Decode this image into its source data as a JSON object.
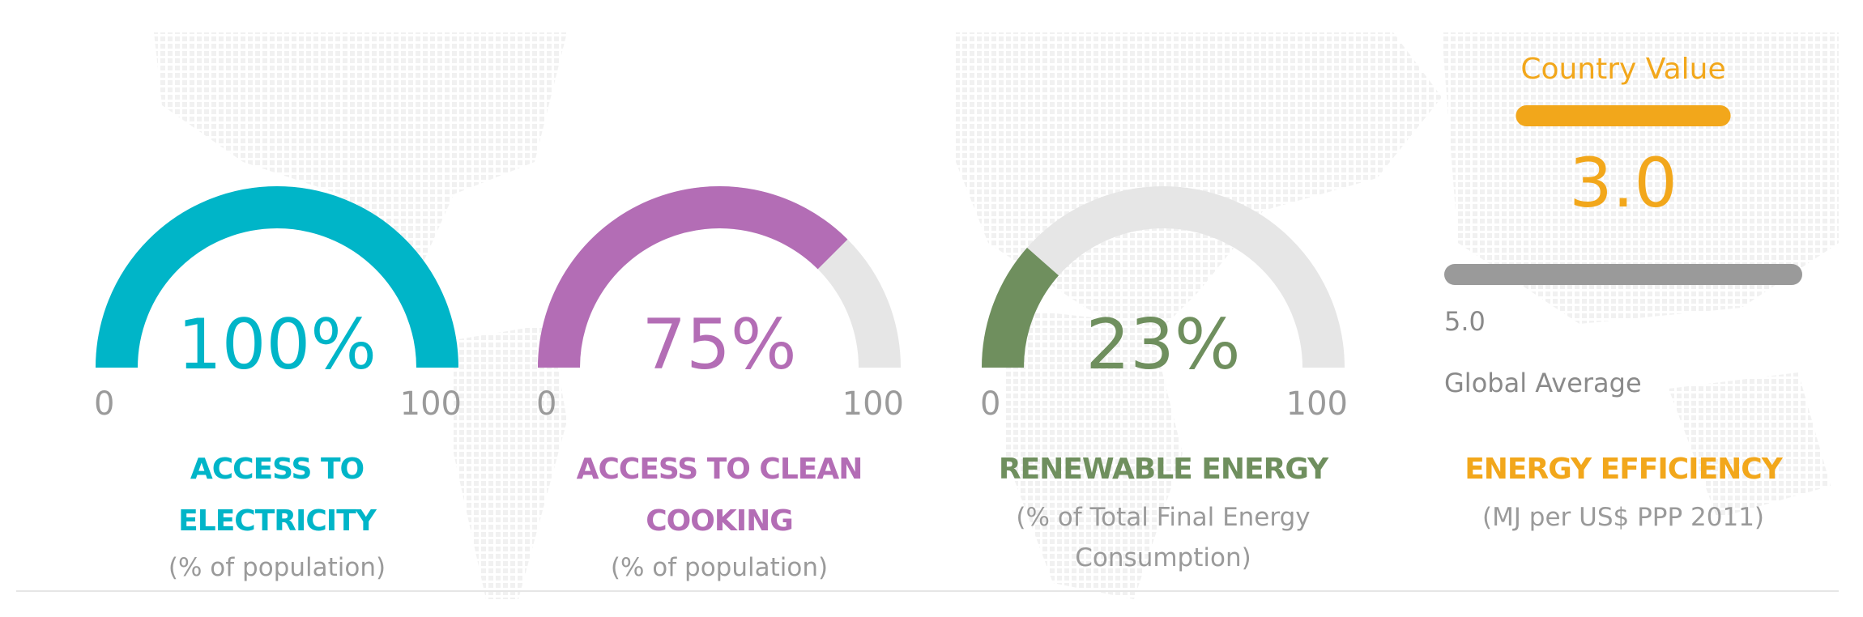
{
  "chart_data": [
    {
      "type": "gauge",
      "title": "ACCESS TO ELECTRICITY",
      "subtitle": "(% of population)",
      "color": "#00b5c8",
      "values": [
        100
      ],
      "value_labels": [
        "100%"
      ],
      "ylim": [
        0,
        100
      ],
      "yticks": [
        0,
        100
      ]
    },
    {
      "type": "gauge",
      "title": "ACCESS TO CLEAN COOKING",
      "subtitle": "(% of population)",
      "color": "#b36db5",
      "values": [
        75
      ],
      "value_labels": [
        "75%"
      ],
      "ylim": [
        0,
        100
      ],
      "yticks": [
        0,
        100
      ]
    },
    {
      "type": "gauge",
      "title": "RENEWABLE ENERGY",
      "subtitle": "(% of Total Final Energy Consumption)",
      "color": "#6f8f5e",
      "values": [
        23
      ],
      "value_labels": [
        "23%"
      ],
      "ylim": [
        0,
        100
      ],
      "yticks": [
        0,
        100
      ]
    },
    {
      "type": "comparison",
      "title": "ENERGY EFFICIENCY",
      "subtitle": "(MJ per US$ PPP 2011)",
      "color": "#f2a71b",
      "series": [
        {
          "name": "Country Value",
          "color": "#f2a71b",
          "values": [
            3.0
          ],
          "value_labels": [
            "3.0"
          ]
        },
        {
          "name": "Global Average",
          "color": "#9a9a9a",
          "values": [
            5.0
          ],
          "value_labels": [
            "5.0"
          ]
        }
      ]
    }
  ]
}
